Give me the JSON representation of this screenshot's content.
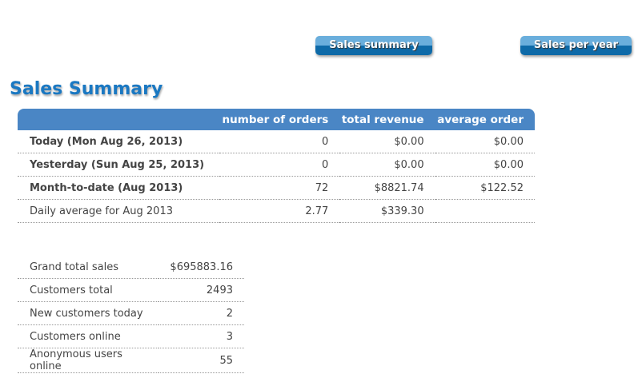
{
  "buttons": {
    "sales_summary": "Sales summary",
    "sales_per_year": "Sales per year"
  },
  "title": "Sales Summary",
  "summary": {
    "headers": [
      "",
      "number of orders",
      "total revenue",
      "average order"
    ],
    "rows": [
      [
        "Today (Mon Aug 26, 2013)",
        "0",
        "$0.00",
        "$0.00"
      ],
      [
        "Yesterday (Sun Aug 25, 2013)",
        "0",
        "$0.00",
        "$0.00"
      ],
      [
        "Month-to-date (Aug 2013)",
        "72",
        "$8821.74",
        "$122.52"
      ],
      [
        "Daily average for Aug 2013",
        "2.77",
        "$339.30",
        ""
      ]
    ]
  },
  "stats": [
    [
      "Grand total sales",
      "$695883.16"
    ],
    [
      "Customers total",
      "2493"
    ],
    [
      "New customers today",
      "2"
    ],
    [
      "Customers online",
      "3"
    ],
    [
      "Anonymous users online",
      "55"
    ]
  ]
}
